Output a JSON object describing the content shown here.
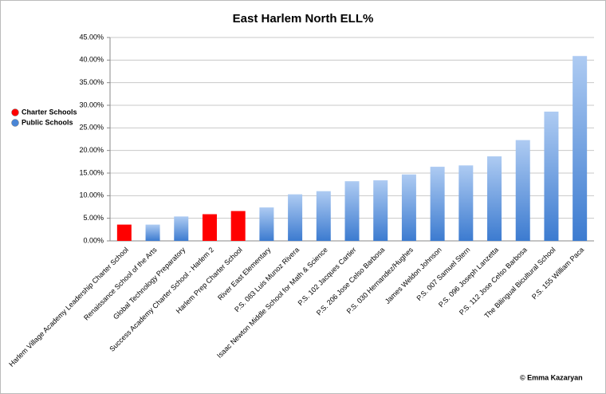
{
  "chart_data": {
    "type": "bar",
    "title": "East Harlem North ELL%",
    "categories": [
      "Harlem Village Academy Leadership Charter School",
      "Renaissance School of the Arts",
      "Global Technology Preparatory",
      "Success Academy Charter School - Harlem 2",
      "Harlem Prep Charter School",
      "River East Elementary",
      "P.S. 083 Luis Munoz Rivera",
      "Isaac Newton Middle School for Math & Science",
      "P.S. 102 Jacques Cartier",
      "P.S. 206 Jose Celso Barbosa",
      "P.S. 030 Hernandez/Hughes",
      "James Weldon Johnson",
      "P.S. 007 Samuel Stern",
      "P.S. 096 Joseph Lanzetta",
      "P.S. 112 Jose Celso Barbosa",
      "The Bilingual Bicultural School",
      "P.S. 155 William Paca"
    ],
    "series": [
      {
        "name": "Charter Schools",
        "color": "#ff0000",
        "values": [
          3.6,
          null,
          null,
          5.9,
          6.6,
          null,
          null,
          null,
          null,
          null,
          null,
          null,
          null,
          null,
          null,
          null,
          null
        ]
      },
      {
        "name": "Public Schools",
        "color": "#4a86d6",
        "values": [
          null,
          3.6,
          5.4,
          null,
          null,
          7.4,
          10.3,
          11.0,
          13.2,
          13.4,
          14.7,
          16.4,
          16.7,
          18.7,
          22.3,
          28.6,
          40.9
        ]
      }
    ],
    "ylim": [
      0,
      45
    ],
    "yticks": [
      {
        "value": 0,
        "label": "0.00%"
      },
      {
        "value": 5,
        "label": "5.00%"
      },
      {
        "value": 10,
        "label": "10.00%"
      },
      {
        "value": 15,
        "label": "15.00%"
      },
      {
        "value": 20,
        "label": "20.00%"
      },
      {
        "value": 25,
        "label": "25.00%"
      },
      {
        "value": 30,
        "label": "30.00%"
      },
      {
        "value": 35,
        "label": "35.00%"
      },
      {
        "value": 40,
        "label": "40.00%"
      },
      {
        "value": 45,
        "label": "45.00%"
      }
    ],
    "grid": true,
    "legend": "left",
    "credit": "© Emma Kazaryan"
  }
}
